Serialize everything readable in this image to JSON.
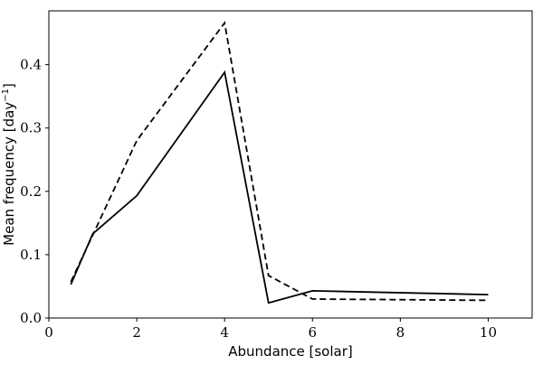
{
  "chart_data": {
    "type": "line",
    "title": "",
    "xlabel": "Abundance [solar]",
    "ylabel": {
      "prefix": "Mean frequency [day",
      "superscript": "−1",
      "suffix": "]"
    },
    "xlim": [
      0,
      11
    ],
    "ylim": [
      0,
      0.485
    ],
    "xticks": [
      0,
      2,
      4,
      6,
      8,
      10
    ],
    "xtick_labels": [
      "0",
      "2",
      "4",
      "6",
      "8",
      "10"
    ],
    "yticks": [
      0.0,
      0.1,
      0.2,
      0.3,
      0.4
    ],
    "ytick_labels": [
      "0.0",
      "0.1",
      "0.2",
      "0.3",
      "0.4"
    ],
    "grid": false,
    "series": [
      {
        "style": "solid",
        "color": "#000000",
        "x": [
          0.5,
          1,
          2,
          4,
          5,
          6,
          10
        ],
        "y": [
          0.053,
          0.133,
          0.193,
          0.388,
          0.024,
          0.043,
          0.037
        ]
      },
      {
        "style": "dashed",
        "color": "#000000",
        "x": [
          0.5,
          1,
          2,
          4,
          5,
          6,
          10
        ],
        "y": [
          0.057,
          0.131,
          0.28,
          0.466,
          0.067,
          0.03,
          0.028
        ]
      }
    ]
  }
}
